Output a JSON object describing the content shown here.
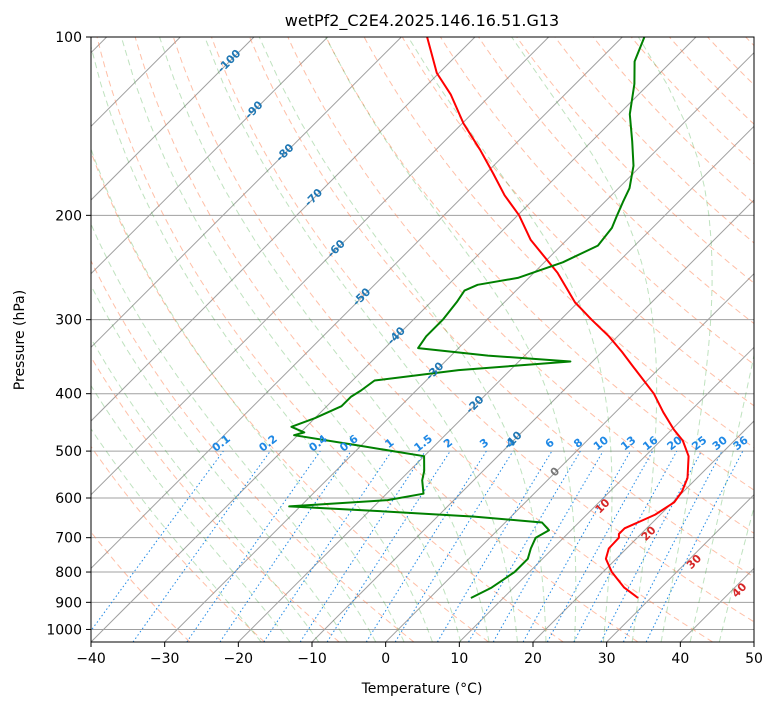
{
  "chart_data": {
    "type": "line",
    "title": "wetPf2_C2E4.2025.146.16.51.G13",
    "xlabel": "Temperature (°C)",
    "ylabel": "Pressure (hPa)",
    "xlim": [
      -40,
      50
    ],
    "ylim": [
      1050,
      100
    ],
    "y_scale": "log",
    "grid": true,
    "x_ticks": [
      "−40",
      "−30",
      "−20",
      "−10",
      "0",
      "10",
      "20",
      "30",
      "40",
      "50"
    ],
    "y_ticks": [
      "100",
      "200",
      "300",
      "400",
      "500",
      "600",
      "700",
      "800",
      "900",
      "1000"
    ],
    "skew": "skew-T log-p",
    "colors": {
      "temperature": "#ff0000",
      "dewpoint": "#008000",
      "isotherm_grid": "#a0a0a0",
      "dry_adiabat": "#ff7f50",
      "moist_adiabat": "#2ca02c",
      "mixing_ratio": "#1e88e5",
      "isotherm_label": "#1f77b4",
      "adiabat_label": "#d62728"
    },
    "series": [
      {
        "key": "temperature",
        "p": [
          885,
          850,
          800,
          760,
          730,
          700,
          690,
          675,
          660,
          640,
          610,
          585,
          555,
          510,
          480,
          460,
          430,
          400,
          360,
          340,
          320,
          300,
          280,
          250,
          220,
          200,
          185,
          170,
          155,
          140,
          125,
          115,
          107,
          100
        ],
        "t": [
          28.3,
          25.0,
          21.2,
          18.6,
          17.6,
          17.5,
          17.0,
          17.0,
          18.0,
          19.3,
          20.2,
          19.8,
          18.7,
          15.9,
          13.0,
          10.3,
          6.5,
          2.7,
          -3.8,
          -7.3,
          -11.2,
          -15.8,
          -20.5,
          -26.8,
          -34.9,
          -39.8,
          -44.5,
          -49.0,
          -54.0,
          -59.8,
          -65.5,
          -70.3,
          -73.5,
          -76.5
        ]
      },
      {
        "key": "dewpoint",
        "p": [
          885,
          850,
          800,
          760,
          730,
          700,
          680,
          660,
          645,
          630,
          620,
          620,
          605,
          590,
          560,
          540,
          510,
          490,
          470,
          465,
          455,
          440,
          420,
          405,
          395,
          380,
          365,
          353,
          345,
          335,
          320,
          300,
          280,
          268,
          262,
          255,
          240,
          225,
          210,
          200,
          190,
          180,
          165,
          150,
          135,
          120,
          110,
          100
        ],
        "t": [
          5.6,
          7.0,
          8.0,
          8.0,
          7.0,
          6.2,
          7.0,
          5.0,
          -5.0,
          -20.0,
          -31.5,
          -31.5,
          -19.0,
          -15.0,
          -17.0,
          -18.0,
          -20.0,
          -30.0,
          -40.5,
          -39.5,
          -42.0,
          -40.0,
          -38.0,
          -38.0,
          -37.5,
          -37.0,
          -27.0,
          -13.0,
          -25.0,
          -35.5,
          -36.0,
          -36.0,
          -36.5,
          -37.0,
          -36.0,
          -31.5,
          -27.5,
          -25.0,
          -25.5,
          -26.5,
          -27.5,
          -28.5,
          -31.0,
          -34.5,
          -38.5,
          -42.0,
          -45.0,
          -47.0
        ]
      }
    ],
    "isotherm_labels": [
      "-100",
      "-90",
      "-80",
      "-70",
      "-60",
      "-50",
      "-40",
      "-30",
      "-20",
      "-10",
      "0"
    ],
    "dry_adiabat_labels": [
      "10",
      "20",
      "30",
      "40"
    ],
    "mixing_ratio_labels": [
      "0.1",
      "0.2",
      "0.4",
      "0.6",
      "1",
      "1.5",
      "2",
      "3",
      "4",
      "6",
      "8",
      "10",
      "13",
      "16",
      "20",
      "25",
      "30",
      "36"
    ]
  }
}
